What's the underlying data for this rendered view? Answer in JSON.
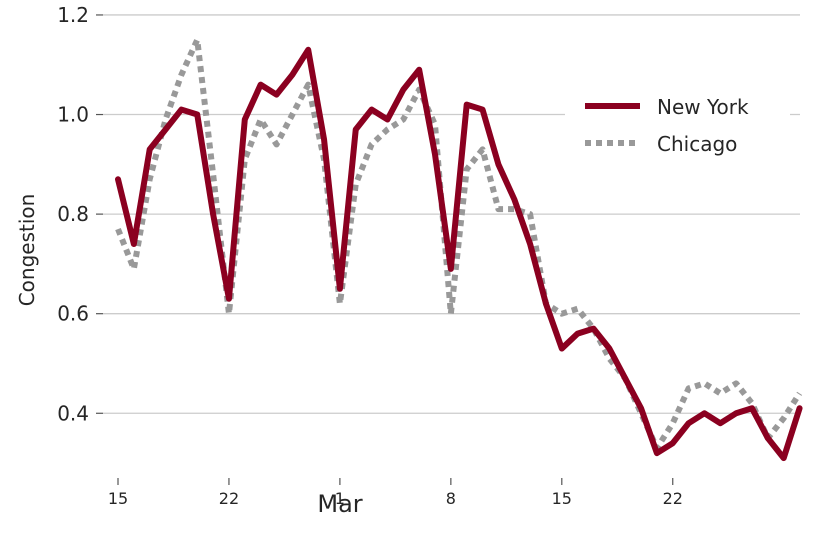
{
  "chart_data": {
    "type": "line",
    "xlabel": "Mar",
    "ylabel": "Congestion",
    "ylim": [
      0.27,
      1.22
    ],
    "yticks": [
      0.4,
      0.6,
      0.8,
      1.0,
      1.2
    ],
    "ytick_labels": [
      "0.4",
      "0.6",
      "0.8",
      "1.0",
      "1.2"
    ],
    "xlim": [
      0,
      43
    ],
    "xticks": [
      0,
      7,
      14,
      21,
      28,
      35
    ],
    "xtick_labels": [
      "15",
      "22",
      "1",
      "8",
      "15",
      "22"
    ],
    "grid": "horizontal",
    "legend_position": "upper-right",
    "x": [
      0,
      1,
      2,
      3,
      4,
      5,
      6,
      7,
      8,
      9,
      10,
      11,
      12,
      13,
      14,
      15,
      16,
      17,
      18,
      19,
      20,
      21,
      22,
      23,
      24,
      25,
      26,
      27,
      28,
      29,
      30,
      31,
      32,
      33,
      34,
      35,
      36,
      37,
      38,
      39,
      40,
      41,
      42,
      43
    ],
    "series": [
      {
        "name": "New York",
        "color": "#8b0020",
        "style": "solid",
        "values": [
          0.87,
          0.74,
          0.93,
          0.97,
          1.01,
          1.0,
          0.8,
          0.63,
          0.99,
          1.06,
          1.04,
          1.08,
          1.13,
          0.95,
          0.65,
          0.97,
          1.01,
          0.99,
          1.05,
          1.09,
          0.92,
          0.69,
          1.02,
          1.01,
          0.9,
          0.83,
          0.74,
          0.62,
          0.53,
          0.56,
          0.57,
          0.53,
          0.47,
          0.41,
          0.32,
          0.34,
          0.38,
          0.4,
          0.38,
          0.4,
          0.41,
          0.35,
          0.31,
          0.41
        ]
      },
      {
        "name": "Chicago",
        "color": "#999999",
        "style": "dotted",
        "values": [
          0.77,
          0.69,
          0.87,
          0.99,
          1.08,
          1.15,
          0.88,
          0.6,
          0.91,
          0.99,
          0.94,
          1.0,
          1.06,
          0.91,
          0.62,
          0.86,
          0.94,
          0.97,
          0.99,
          1.05,
          0.98,
          0.6,
          0.89,
          0.93,
          0.81,
          0.81,
          0.8,
          0.62,
          0.6,
          0.61,
          0.57,
          0.51,
          0.47,
          0.4,
          0.33,
          0.38,
          0.45,
          0.46,
          0.44,
          0.46,
          0.42,
          0.35,
          0.39,
          0.44
        ]
      }
    ]
  }
}
